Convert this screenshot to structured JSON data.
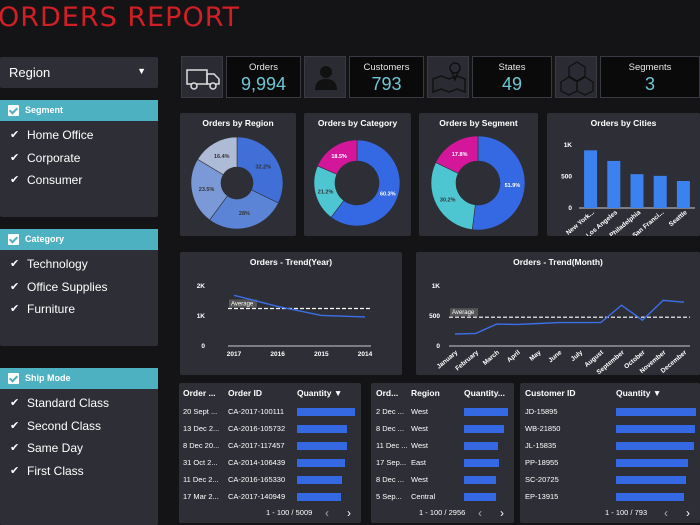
{
  "header": {
    "title": "ORDERS REPORT"
  },
  "filters": {
    "region_dropdown": {
      "label": "Region"
    },
    "segment": {
      "title": "Segment",
      "items": [
        "Home Office",
        "Corporate",
        "Consumer"
      ]
    },
    "category": {
      "title": "Category",
      "items": [
        "Technology",
        "Office Supplies",
        "Furniture"
      ]
    },
    "ship_mode": {
      "title": "Ship Mode",
      "items": [
        "Standard Class",
        "Second Class",
        "Same Day",
        "First Class"
      ]
    }
  },
  "kpis": [
    {
      "label": "Orders",
      "value": "9,994",
      "icon": "truck-icon"
    },
    {
      "label": "Customers",
      "value": "793",
      "icon": "person-icon"
    },
    {
      "label": "States",
      "value": "49",
      "icon": "map-pin-icon"
    },
    {
      "label": "Segments",
      "value": "3",
      "icon": "hexagons-icon"
    }
  ],
  "colors": {
    "accent": "#6ec7d6",
    "title_red": "#d21f26",
    "bar_blue": "#3569e4",
    "filter_head": "#4eb1c2",
    "pink": "#d4179a"
  },
  "chart_data": [
    {
      "type": "pie",
      "title": "Orders by Region",
      "slices": [
        {
          "label": "32.2%",
          "value": 32.2,
          "color": "#3f6fd7"
        },
        {
          "label": "28%",
          "value": 28.0,
          "color": "#5b84d6"
        },
        {
          "label": "23.5%",
          "value": 23.5,
          "color": "#7a99d6"
        },
        {
          "label": "16.4%",
          "value": 16.4,
          "color": "#aebbd6"
        }
      ]
    },
    {
      "type": "pie",
      "title": "Orders by Category",
      "slices": [
        {
          "label": "60.3%",
          "value": 60.3,
          "color": "#3569e4"
        },
        {
          "label": "21.2%",
          "value": 21.2,
          "color": "#4ec6d2"
        },
        {
          "label": "18.5%",
          "value": 18.5,
          "color": "#d4179a"
        }
      ]
    },
    {
      "type": "pie",
      "title": "Orders by Segment",
      "slices": [
        {
          "label": "51.9%",
          "value": 51.9,
          "color": "#3569e4"
        },
        {
          "label": "30.2%",
          "value": 30.2,
          "color": "#4ec6d2"
        },
        {
          "label": "17.8%",
          "value": 17.8,
          "color": "#d4179a"
        }
      ]
    },
    {
      "type": "bar",
      "title": "Orders by Cities",
      "categories": [
        "New York...",
        "Los Angeles",
        "Philadelphia",
        "San Franci...",
        "Seattle"
      ],
      "values": [
        915,
        747,
        537,
        510,
        428
      ],
      "ylim": [
        0,
        1000
      ],
      "yticks": [
        "1K",
        "500",
        "0"
      ]
    },
    {
      "type": "line",
      "title": "Orders - Trend(Year)",
      "categories": [
        "2017",
        "2016",
        "2015",
        "2014"
      ],
      "values": [
        1690,
        1320,
        1020,
        970
      ],
      "average": 1250,
      "average_label": "Average",
      "ylim": [
        0,
        2000
      ],
      "yticks": [
        "2K",
        "1K",
        "0"
      ]
    },
    {
      "type": "line",
      "title": "Orders - Trend(Month)",
      "categories": [
        "January",
        "February",
        "March",
        "April",
        "May",
        "June",
        "July",
        "August",
        "September",
        "October",
        "November",
        "December"
      ],
      "values": [
        200,
        210,
        365,
        360,
        375,
        390,
        390,
        390,
        680,
        430,
        760,
        730
      ],
      "average": 480,
      "average_label": "Average",
      "ylim": [
        0,
        1000
      ],
      "yticks": [
        "1K",
        "500",
        "0"
      ]
    }
  ],
  "tables": {
    "orders": {
      "headers": [
        "Order ...",
        "Order ID",
        "Quantity"
      ],
      "sort_indicator": "▼",
      "rows": [
        {
          "date": "20 Sept ...",
          "id": "CA-2017-100111",
          "qty": 1.0
        },
        {
          "date": "13 Dec 2...",
          "id": "CA-2016-105732",
          "qty": 0.86
        },
        {
          "date": "8 Dec 20...",
          "id": "CA-2017-117457",
          "qty": 0.86
        },
        {
          "date": "31 Oct 2...",
          "id": "CA-2014-106439",
          "qty": 0.83
        },
        {
          "date": "11 Dec 2...",
          "id": "CA-2016-165330",
          "qty": 0.78
        },
        {
          "date": "17 Mar 2...",
          "id": "CA-2017-140949",
          "qty": 0.75
        }
      ],
      "footer": "1 - 100 / 5009"
    },
    "regions": {
      "headers": [
        "Ord...",
        "Region",
        "Quantity..."
      ],
      "rows": [
        {
          "date": "2 Dec ...",
          "region": "West",
          "qty": 1.0
        },
        {
          "date": "8 Dec ...",
          "region": "West",
          "qty": 0.9
        },
        {
          "date": "11 Dec ...",
          "region": "West",
          "qty": 0.78
        },
        {
          "date": "17 Sep...",
          "region": "East",
          "qty": 0.8
        },
        {
          "date": "8 Dec ...",
          "region": "West",
          "qty": 0.72
        },
        {
          "date": "5 Sep...",
          "region": "Central",
          "qty": 0.72
        }
      ],
      "footer": "1 - 100 / 2956"
    },
    "customers": {
      "headers": [
        "Customer ID",
        "Quantity"
      ],
      "sort_indicator": "▼",
      "rows": [
        {
          "id": "JD-15895",
          "qty": 1.0
        },
        {
          "id": "WB-21850",
          "qty": 0.99
        },
        {
          "id": "JL-15835",
          "qty": 0.98
        },
        {
          "id": "PP-18955",
          "qty": 0.9
        },
        {
          "id": "SC-20725",
          "qty": 0.88
        },
        {
          "id": "EP-13915",
          "qty": 0.85
        }
      ],
      "footer": "1 - 100 / 793"
    }
  },
  "pager": {
    "prev": "‹",
    "next": "›"
  }
}
